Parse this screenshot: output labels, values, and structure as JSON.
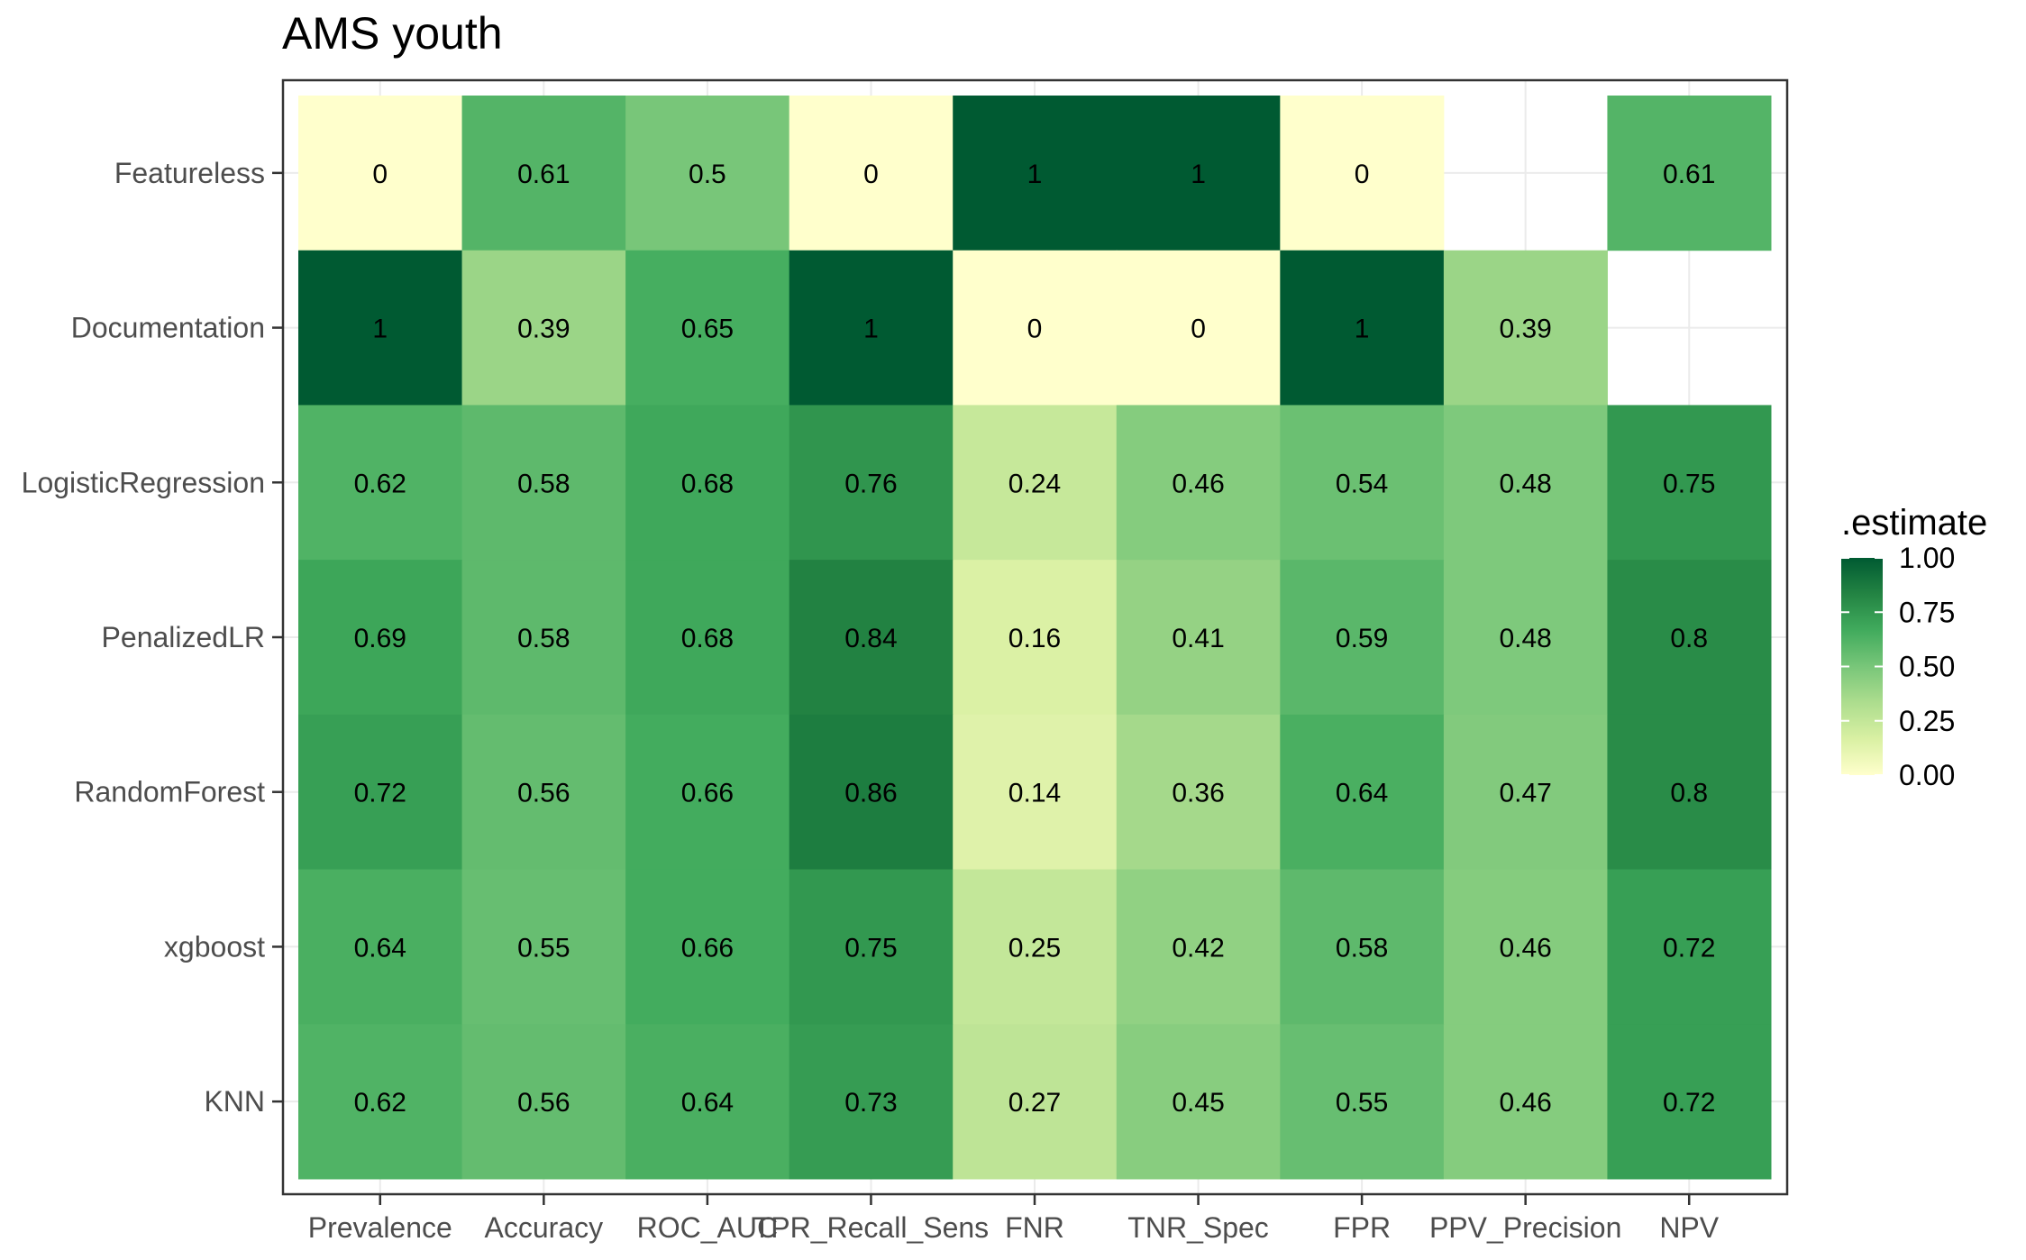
{
  "chart_data": {
    "type": "heatmap",
    "title": "AMS youth",
    "xlabel": "",
    "ylabel": "",
    "x_categories": [
      "Prevalence",
      "Accuracy",
      "ROC_AUC",
      "TPR_Recall_Sens",
      "FNR",
      "TNR_Spec",
      "FPR",
      "PPV_Precision",
      "NPV"
    ],
    "y_categories": [
      "Featureless",
      "Documentation",
      "LogisticRegression",
      "PenalizedLR",
      "RandomForest",
      "xgboost",
      "KNN"
    ],
    "values": [
      [
        0,
        0.61,
        0.5,
        0,
        1,
        1,
        0,
        null,
        0.61
      ],
      [
        1,
        0.39,
        0.65,
        1,
        0,
        0,
        1,
        0.39,
        null
      ],
      [
        0.62,
        0.58,
        0.68,
        0.76,
        0.24,
        0.46,
        0.54,
        0.48,
        0.75
      ],
      [
        0.69,
        0.58,
        0.68,
        0.84,
        0.16,
        0.41,
        0.59,
        0.48,
        0.8
      ],
      [
        0.72,
        0.56,
        0.66,
        0.86,
        0.14,
        0.36,
        0.64,
        0.47,
        0.8
      ],
      [
        0.64,
        0.55,
        0.66,
        0.75,
        0.25,
        0.42,
        0.58,
        0.46,
        0.72
      ],
      [
        0.62,
        0.56,
        0.64,
        0.73,
        0.27,
        0.45,
        0.55,
        0.46,
        0.72
      ]
    ],
    "legend": {
      "title": ".estimate",
      "position": "right",
      "ticks": [
        "1.00",
        "0.75",
        "0.50",
        "0.25",
        "0.00"
      ],
      "range": [
        0,
        1
      ],
      "colors": [
        "#FFFFCC",
        "#D9F0A3",
        "#ADDD8E",
        "#78C679",
        "#41AB5D",
        "#238443",
        "#005A32"
      ]
    },
    "grid": true
  }
}
